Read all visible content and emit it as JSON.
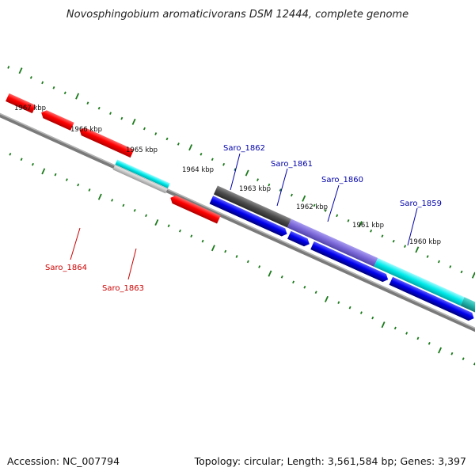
{
  "title": "Novosphingobium aromaticivorans DSM 12444, complete genome",
  "footer": {
    "accession": "Accession: NC_007794",
    "summary": "Topology: circular; Length: 3,561,584 bp; Genes: 3,397"
  },
  "ruler_labels": [
    "1967 kbp",
    "1966 kbp",
    "1965 kbp",
    "1964 kbp",
    "1963 kbp",
    "1962 kbp",
    "1961 kbp",
    "1960 kbp"
  ],
  "gene_labels": {
    "saro_1864": "Saro_1864",
    "saro_1863": "Saro_1863",
    "saro_1862": "Saro_1862",
    "saro_1861": "Saro_1861",
    "saro_1860": "Saro_1860",
    "saro_1859": "Saro_1859"
  },
  "colors": {
    "backbone": "#808080",
    "tick": "#1a7a1a",
    "red_gene": "#ff0000",
    "red_label": "#cc0000",
    "blue_gene": "#0000ee",
    "blue_label": "#0000aa",
    "cyan": "#00e5e5",
    "purple": "#7b68d8",
    "gray_feature": "#555555",
    "teal": "#20b2aa"
  }
}
